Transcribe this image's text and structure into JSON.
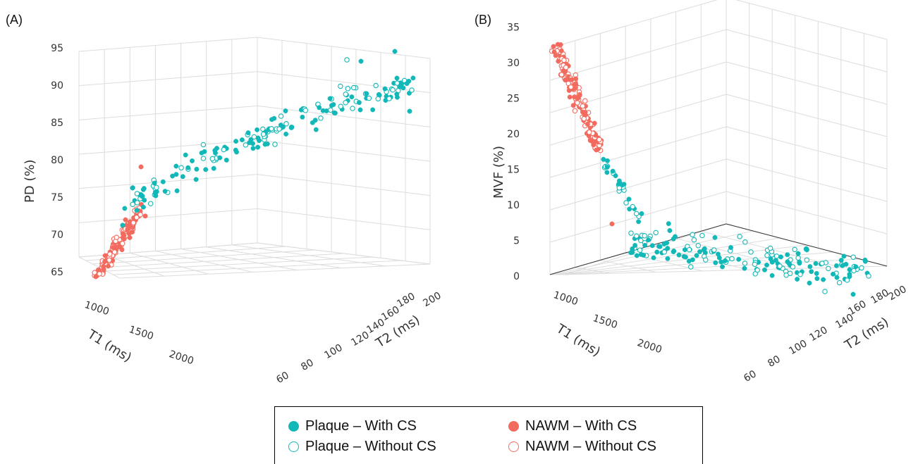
{
  "colors": {
    "plaque": "#12b8b8",
    "nawm": "#f26b5e",
    "grid": "#dcdcdc"
  },
  "legend": [
    {
      "label": "Plaque – With CS",
      "color": "#12b8b8",
      "filled": true
    },
    {
      "label": "Plaque – Without CS",
      "color": "#12b8b8",
      "filled": false
    },
    {
      "label": "NAWM – With CS",
      "color": "#f26b5e",
      "filled": true
    },
    {
      "label": "NAWM – Without CS",
      "color": "#f26b5e",
      "filled": false
    }
  ],
  "chart_data": [
    {
      "type": "scatter",
      "panel_label": "(A)",
      "zlabel": "PD (%)",
      "xlabel": "T1 (ms)",
      "ylabel": "T2 (ms)",
      "z_ticks": [
        "65",
        "70",
        "75",
        "80",
        "85",
        "90",
        "95"
      ],
      "x_ticks": [
        "1000",
        "1500",
        "2000"
      ],
      "y_ticks": [
        "60",
        "80",
        "100",
        "120",
        "140",
        "160",
        "180",
        "200"
      ],
      "zlim": [
        63,
        95
      ],
      "series": [
        {
          "name": "Plaque – With CS",
          "group": "plaque",
          "filled": true
        },
        {
          "name": "Plaque – Without CS",
          "group": "plaque",
          "filled": false
        },
        {
          "name": "NAWM – With CS",
          "group": "nawm",
          "filled": true
        },
        {
          "name": "NAWM – Without CS",
          "group": "nawm",
          "filled": false
        }
      ]
    },
    {
      "type": "scatter",
      "panel_label": "(B)",
      "zlabel": "MVF (%)",
      "xlabel": "T1 (ms)",
      "ylabel": "T2 (ms)",
      "z_ticks": [
        "0",
        "5",
        "10",
        "15",
        "20",
        "25",
        "30",
        "35"
      ],
      "x_ticks": [
        "1000",
        "1500",
        "2000"
      ],
      "y_ticks": [
        "60",
        "80",
        "100",
        "120",
        "140",
        "160",
        "180",
        "200"
      ],
      "zlim": [
        0,
        35
      ],
      "series": [
        {
          "name": "Plaque – With CS",
          "group": "plaque",
          "filled": true
        },
        {
          "name": "Plaque – Without CS",
          "group": "plaque",
          "filled": false
        },
        {
          "name": "NAWM – With CS",
          "group": "nawm",
          "filled": true
        },
        {
          "name": "NAWM – Without CS",
          "group": "nawm",
          "filled": false
        }
      ]
    }
  ]
}
